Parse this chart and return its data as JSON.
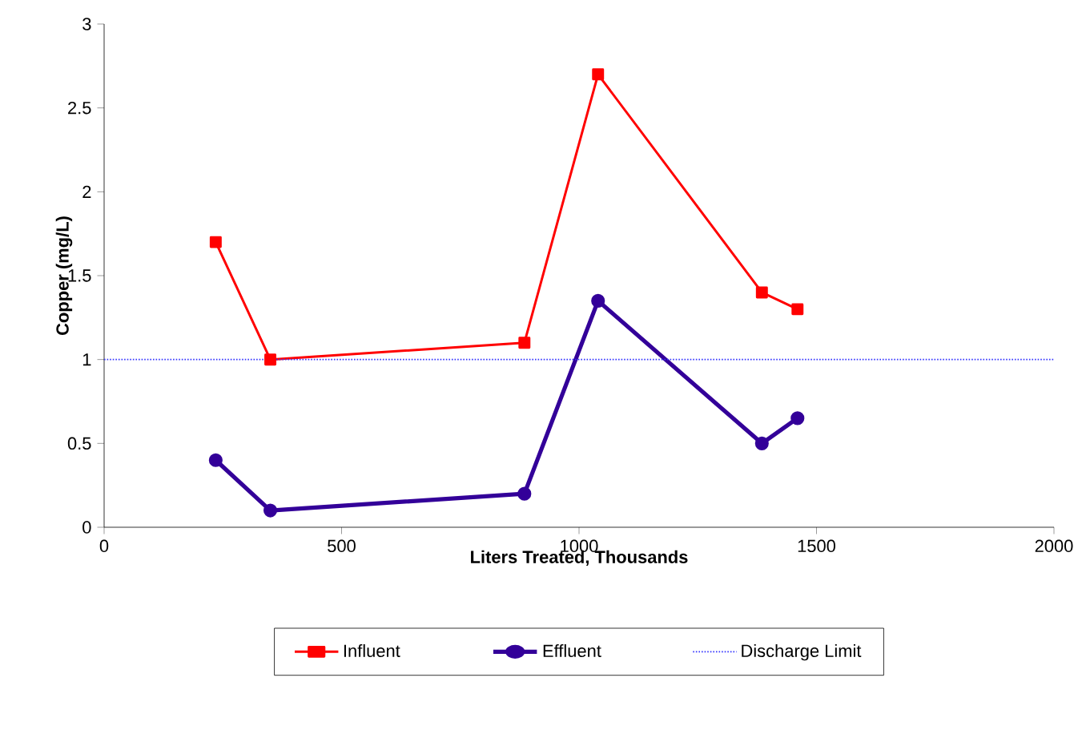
{
  "chart_data": {
    "type": "line",
    "xlabel": "Liters Treated, Thousands",
    "ylabel": "Copper (mg/L)",
    "x": [
      235,
      350,
      885,
      1040,
      1385,
      1460
    ],
    "series": [
      {
        "name": "Influent",
        "color": "#ff0000",
        "marker": "square",
        "values": [
          1.7,
          1.0,
          1.1,
          2.7,
          1.4,
          1.3
        ]
      },
      {
        "name": "Effluent",
        "color": "#330099",
        "marker": "circle",
        "values": [
          0.4,
          0.1,
          0.2,
          1.35,
          0.5,
          0.65
        ]
      }
    ],
    "ref_lines": [
      {
        "axis": "y",
        "value": 1,
        "label": "Discharge Limit",
        "color": "#3333ff",
        "line_style": "dotted"
      }
    ],
    "xlim": [
      0,
      2000
    ],
    "ylim": [
      0,
      3
    ],
    "xticks": [
      0,
      500,
      1000,
      1500,
      2000
    ],
    "yticks": [
      0,
      0.5,
      1,
      1.5,
      2,
      2.5,
      3
    ],
    "grid": false,
    "legend": "bottom",
    "line_style": "solid"
  }
}
